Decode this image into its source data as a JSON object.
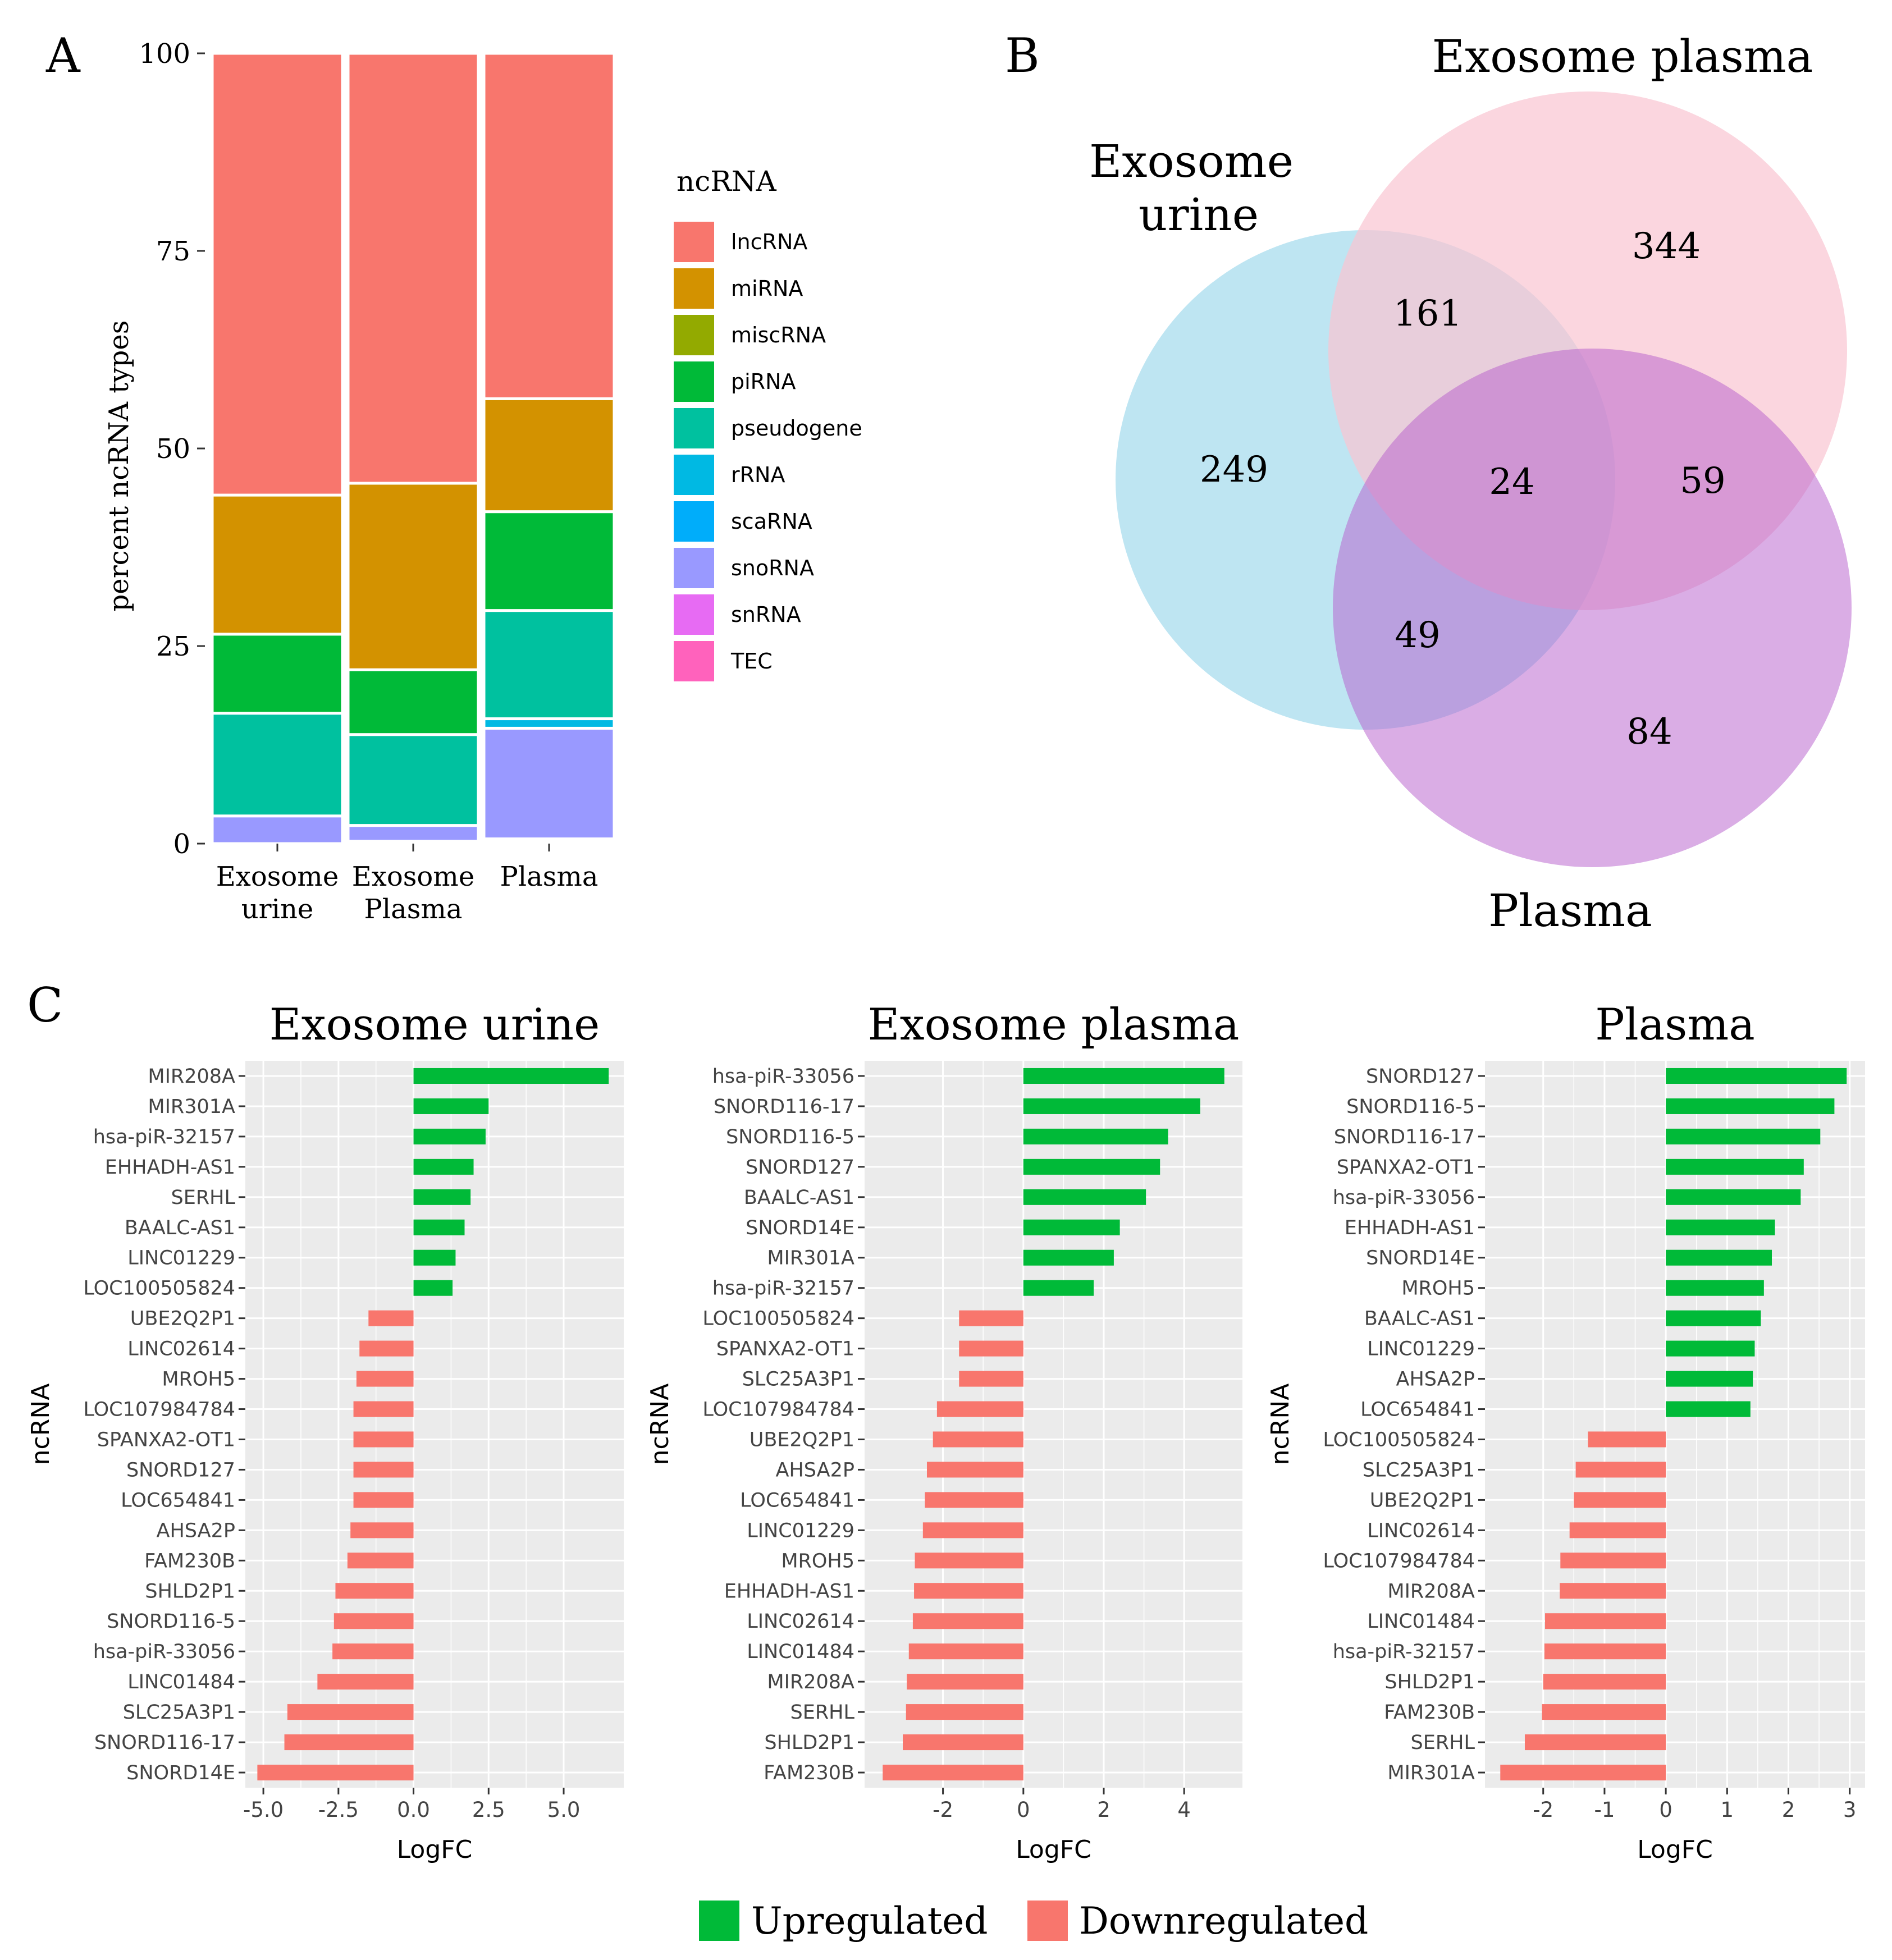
{
  "panels": {
    "a": "A",
    "b": "B",
    "c": "C"
  },
  "colors": {
    "lncRNA": "#F8766D",
    "miRNA": "#D39200",
    "miscRNA": "#93AA00",
    "piRNA": "#00BA38",
    "pseudogene": "#00C19F",
    "rRNA": "#00B9E3",
    "scaRNA": "#00ADFA",
    "snoRNA": "#9999FF",
    "snRNA": "#E76BF3",
    "TEC": "#FF62BC",
    "up": "#00BA38",
    "down": "#F8766D",
    "panel_bg": "#EBEBEB",
    "grid": "#FFFFFF",
    "venn_urine": "#A8DCEE",
    "venn_exoplasma": "#FAC5D2",
    "venn_plasma": "#C98BD9"
  },
  "chart_data": [
    {
      "type": "bar",
      "stacked": true,
      "ylabel": "percent ncRNA types",
      "ylim": [
        0,
        100
      ],
      "yticks": [
        "0",
        "25",
        "50",
        "75",
        "100"
      ],
      "categories": [
        [
          "Exosome",
          "urine"
        ],
        [
          "Exosome",
          "Plasma"
        ],
        [
          "Plasma"
        ]
      ],
      "legend_title": "ncRNA",
      "legend": [
        "lncRNA",
        "miRNA",
        "miscRNA",
        "piRNA",
        "pseudogene",
        "rRNA",
        "scaRNA",
        "snoRNA",
        "snRNA",
        "TEC"
      ],
      "series": [
        {
          "name": "TEC",
          "values": [
            0,
            0,
            0.3
          ]
        },
        {
          "name": "snRNA",
          "values": [
            0,
            0.3,
            0.3
          ]
        },
        {
          "name": "snoRNA",
          "values": [
            3.5,
            2,
            14
          ]
        },
        {
          "name": "scaRNA",
          "values": [
            0,
            0,
            0
          ]
        },
        {
          "name": "rRNA",
          "values": [
            0,
            0,
            1.2
          ]
        },
        {
          "name": "pseudogene",
          "values": [
            13,
            11.5,
            13.7
          ]
        },
        {
          "name": "piRNA",
          "values": [
            10,
            8.2,
            12.5
          ]
        },
        {
          "name": "miscRNA",
          "values": [
            0,
            0,
            0
          ]
        },
        {
          "name": "miRNA",
          "values": [
            17.6,
            23.6,
            14.3
          ]
        },
        {
          "name": "lncRNA",
          "values": [
            55.9,
            54.4,
            43.7
          ]
        }
      ]
    },
    {
      "type": "venn",
      "sets": [
        {
          "name": "Exosome urine",
          "label_lines": [
            "Exosome",
            "urine"
          ]
        },
        {
          "name": "Exosome plasma",
          "label_lines": [
            "Exosome plasma"
          ]
        },
        {
          "name": "Plasma",
          "label_lines": [
            "Plasma"
          ]
        }
      ],
      "regions": {
        "urine_only": "249",
        "exoplasma_only": "344",
        "plasma_only": "84",
        "urine_exoplasma": "161",
        "urine_plasma": "49",
        "exoplasma_plasma": "59",
        "all_three": "24"
      }
    },
    {
      "type": "bar",
      "orientation": "horizontal",
      "title": "Exosome urine",
      "xlabel": "LogFC",
      "ylabel": "ncRNA",
      "xlim": [
        -5.6,
        7.0
      ],
      "xticks": [
        -5,
        -2.5,
        0,
        2.5,
        5
      ],
      "xtick_labels": [
        "-5.0",
        "-2.5",
        "0.0",
        "2.5",
        "5.0"
      ],
      "categories": [
        "MIR208A",
        "MIR301A",
        "hsa-piR-32157",
        "EHHADH-AS1",
        "SERHL",
        "BAALC-AS1",
        "LINC01229",
        "LOC100505824",
        "UBE2Q2P1",
        "LINC02614",
        "MROH5",
        "LOC107984784",
        "SPANXA2-OT1",
        "SNORD127",
        "LOC654841",
        "AHSA2P",
        "FAM230B",
        "SHLD2P1",
        "SNORD116-5",
        "hsa-piR-33056",
        "LINC01484",
        "SLC25A3P1",
        "SNORD116-17",
        "SNORD14E"
      ],
      "values": [
        6.5,
        2.5,
        2.4,
        2.0,
        1.9,
        1.7,
        1.4,
        1.3,
        -1.5,
        -1.8,
        -1.9,
        -2.0,
        -2.0,
        -2.0,
        -2.0,
        -2.1,
        -2.2,
        -2.6,
        -2.65,
        -2.7,
        -3.2,
        -4.2,
        -4.3,
        -5.2
      ]
    },
    {
      "type": "bar",
      "orientation": "horizontal",
      "title": "Exosome plasma",
      "xlabel": "LogFC",
      "ylabel": "ncRNA",
      "xlim": [
        -3.95,
        5.45
      ],
      "xticks": [
        -2,
        0,
        2,
        4
      ],
      "xtick_labels": [
        "-2",
        "0",
        "2",
        "4"
      ],
      "categories": [
        "hsa-piR-33056",
        "SNORD116-17",
        "SNORD116-5",
        "SNORD127",
        "BAALC-AS1",
        "SNORD14E",
        "MIR301A",
        "hsa-piR-32157",
        "LOC100505824",
        "SPANXA2-OT1",
        "SLC25A3P1",
        "LOC107984784",
        "UBE2Q2P1",
        "AHSA2P",
        "LOC654841",
        "LINC01229",
        "MROH5",
        "EHHADH-AS1",
        "LINC02614",
        "LINC01484",
        "MIR208A",
        "SERHL",
        "SHLD2P1",
        "FAM230B"
      ],
      "values": [
        5.0,
        4.4,
        3.6,
        3.4,
        3.05,
        2.4,
        2.25,
        1.75,
        -1.6,
        -1.6,
        -1.6,
        -2.15,
        -2.25,
        -2.4,
        -2.45,
        -2.5,
        -2.7,
        -2.72,
        -2.75,
        -2.85,
        -2.9,
        -2.92,
        -3.0,
        -3.5
      ]
    },
    {
      "type": "bar",
      "orientation": "horizontal",
      "title": "Plasma",
      "xlabel": "LogFC",
      "ylabel": "ncRNA",
      "xlim": [
        -2.95,
        3.25
      ],
      "xticks": [
        -2,
        -1,
        0,
        1,
        2,
        3
      ],
      "xtick_labels": [
        "-2",
        "-1",
        "0",
        "1",
        "2",
        "3"
      ],
      "categories": [
        "SNORD127",
        "SNORD116-5",
        "SNORD116-17",
        "SPANXA2-OT1",
        "hsa-piR-33056",
        "EHHADH-AS1",
        "SNORD14E",
        "MROH5",
        "BAALC-AS1",
        "LINC01229",
        "AHSA2P",
        "LOC654841",
        "LOC100505824",
        "SLC25A3P1",
        "UBE2Q2P1",
        "LINC02614",
        "LOC107984784",
        "MIR208A",
        "LINC01484",
        "hsa-piR-32157",
        "SHLD2P1",
        "FAM230B",
        "SERHL",
        "MIR301A"
      ],
      "values": [
        2.95,
        2.75,
        2.52,
        2.25,
        2.2,
        1.78,
        1.73,
        1.6,
        1.55,
        1.45,
        1.42,
        1.38,
        -1.27,
        -1.47,
        -1.5,
        -1.57,
        -1.72,
        -1.73,
        -1.97,
        -1.98,
        -2.0,
        -2.02,
        -2.3,
        -2.7
      ]
    }
  ],
  "bottom_legend": {
    "up": "Upregulated",
    "down": "Downregulated"
  }
}
